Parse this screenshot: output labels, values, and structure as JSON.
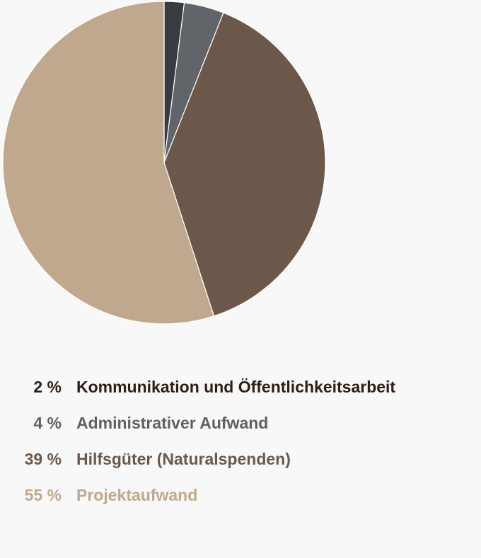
{
  "chart_data": {
    "type": "pie",
    "slices": [
      {
        "label": "Kommunikation und Öffentlichkeitsarbeit",
        "value": 2,
        "value_text": "2 %",
        "color": "#383c40",
        "label_color": "#2b1e16"
      },
      {
        "label": "Administrativer Aufwand",
        "value": 4,
        "value_text": "4 %",
        "color": "#616468",
        "label_color": "#5d6064"
      },
      {
        "label": "Hilfsgüter (Naturalspenden)",
        "value": 39,
        "value_text": "39 %",
        "color": "#6c584a",
        "label_color": "#6c584a"
      },
      {
        "label": "Projektaufwand",
        "value": 55,
        "value_text": "55 %",
        "color": "#c0a88f",
        "label_color": "#c0a88f"
      }
    ],
    "start_angle": "12 o'clock",
    "direction": "clockwise",
    "legend": "below"
  }
}
